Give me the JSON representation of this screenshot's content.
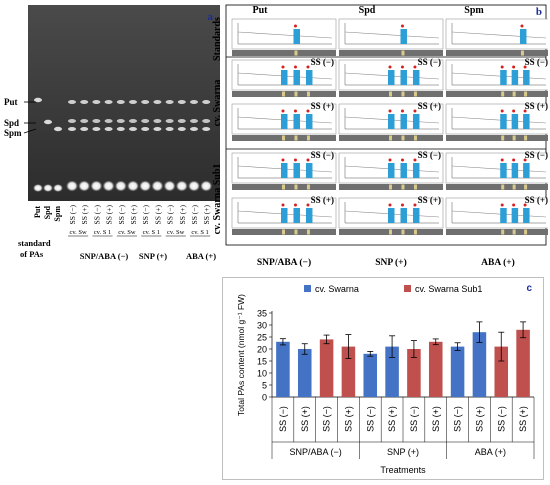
{
  "panel_a": {
    "letter": "a",
    "band_labels": [
      "Put",
      "Spd",
      "Spm"
    ],
    "standard_lanes": [
      "Put",
      "Spd",
      "Spm"
    ],
    "lanes": [
      {
        "cv": "cv. Sw",
        "ss": [
          "SS (−)",
          "SS (+)"
        ]
      },
      {
        "cv": "cv. S 1",
        "ss": [
          "SS (−)",
          "SS (+)"
        ]
      },
      {
        "cv": "cv. Sw",
        "ss": [
          "SS (−)",
          "SS (+)"
        ]
      },
      {
        "cv": "cv. S 1",
        "ss": [
          "SS (−)",
          "SS (+)"
        ]
      },
      {
        "cv": "cv. Sw",
        "ss": [
          "SS (−)",
          "SS (+)"
        ]
      },
      {
        "cv": "cv. S 1",
        "ss": [
          "SS (−)",
          "SS (+)"
        ]
      }
    ],
    "groups": [
      "standard of PAs",
      "SNP/ABA (−)",
      "SNP (+)",
      "ABA (+)"
    ]
  },
  "panel_b": {
    "letter": "b",
    "col_titles": [
      "Put",
      "Spd",
      "Spm"
    ],
    "row_titles": [
      "Standards",
      "cv. Swarna",
      "cv. Swarna Sub1"
    ],
    "ss_labels": [
      "SS (−)",
      "SS (+)"
    ],
    "bottom_labels": [
      "SNP/ABA (−)",
      "SNP (+)",
      "ABA (+)"
    ],
    "colors": {
      "peak": "#2e9fd6",
      "dot": "#d62020"
    }
  },
  "panel_c": {
    "letter": "c",
    "chart_data": {
      "type": "bar",
      "legend_position": "top",
      "ylabel": "Total PAs content (nmol g⁻¹ FW)",
      "xlabel": "Treatments",
      "ylim": [
        0,
        35
      ],
      "yticks": [
        0,
        5,
        10,
        15,
        20,
        25,
        30,
        35
      ],
      "categories": [
        "SS (−)",
        "SS (+)",
        "SS (−)",
        "SS (+)",
        "SS (−)",
        "SS (+)",
        "SS (−)",
        "SS (+)",
        "SS (−)",
        "SS (+)",
        "SS (−)",
        "SS (+)"
      ],
      "groups": [
        {
          "label": "SNP/ABA (−)",
          "span": [
            0,
            3
          ]
        },
        {
          "label": "SNP (+)",
          "span": [
            4,
            7
          ]
        },
        {
          "label": "ABA (+)",
          "span": [
            8,
            11
          ]
        }
      ],
      "series": [
        {
          "name": "cv. Swarna",
          "color": "#4472c4",
          "indices": [
            0,
            1,
            4,
            5,
            8,
            9
          ]
        },
        {
          "name": "cv. Swarna Sub1",
          "color": "#c0504d",
          "indices": [
            2,
            3,
            6,
            7,
            10,
            11
          ]
        }
      ],
      "values": [
        23,
        20,
        24,
        21,
        18,
        21,
        20,
        23,
        21,
        27,
        21,
        28
      ],
      "errors": [
        1.3,
        2.2,
        1.8,
        5,
        1,
        4.5,
        3.5,
        1.2,
        1.6,
        4.3,
        6,
        3.3
      ]
    }
  }
}
